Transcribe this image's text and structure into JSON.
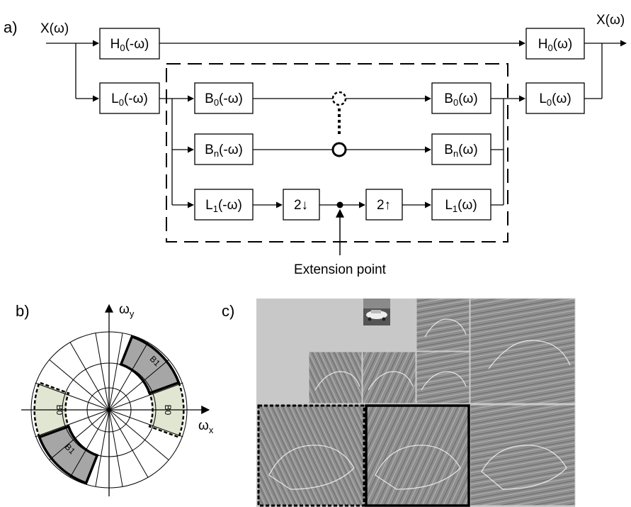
{
  "panels": {
    "a": "a)",
    "b": "b)",
    "c": "c)"
  },
  "signals": {
    "input": "X(ω)",
    "output": "X(ω)"
  },
  "blocks": {
    "H0_analysis": {
      "base": "H",
      "sub": "0",
      "arg": "(-ω)"
    },
    "L0_analysis": {
      "base": "L",
      "sub": "0",
      "arg": "(-ω)"
    },
    "B0_analysis": {
      "base": "B",
      "sub": "0",
      "arg": "(-ω)"
    },
    "Bn_analysis": {
      "base": "B",
      "sub": "n",
      "arg": "(-ω)"
    },
    "L1_analysis": {
      "base": "L",
      "sub": "1",
      "arg": "(-ω)"
    },
    "down2": {
      "text": "2↓"
    },
    "up2": {
      "text": "2↑"
    },
    "H0_synthesis": {
      "base": "H",
      "sub": "0",
      "arg": "(ω)"
    },
    "L0_synthesis": {
      "base": "L",
      "sub": "0",
      "arg": "(ω)"
    },
    "B0_synthesis": {
      "base": "B",
      "sub": "0",
      "arg": "(ω)"
    },
    "Bn_synthesis": {
      "base": "B",
      "sub": "n",
      "arg": "(ω)"
    },
    "L1_synthesis": {
      "base": "L",
      "sub": "1",
      "arg": "(ω)"
    }
  },
  "annotation": {
    "extension_point": "Extension point"
  },
  "frequency_plane": {
    "axis_y": {
      "base": "ω",
      "sub": "y"
    },
    "axis_x": {
      "base": "ω",
      "sub": "x"
    },
    "bands": {
      "B1_upper": "B1",
      "B1_lower": "B1",
      "B0_left": "B0",
      "B0_right": "B0"
    },
    "colors": {
      "B1_fill": "#a6a6a6",
      "B0_fill": "#e0e6d2"
    }
  },
  "pyramid": {
    "colors": {
      "background": "#c8c8c8",
      "subband": "#8e8e8e"
    }
  }
}
